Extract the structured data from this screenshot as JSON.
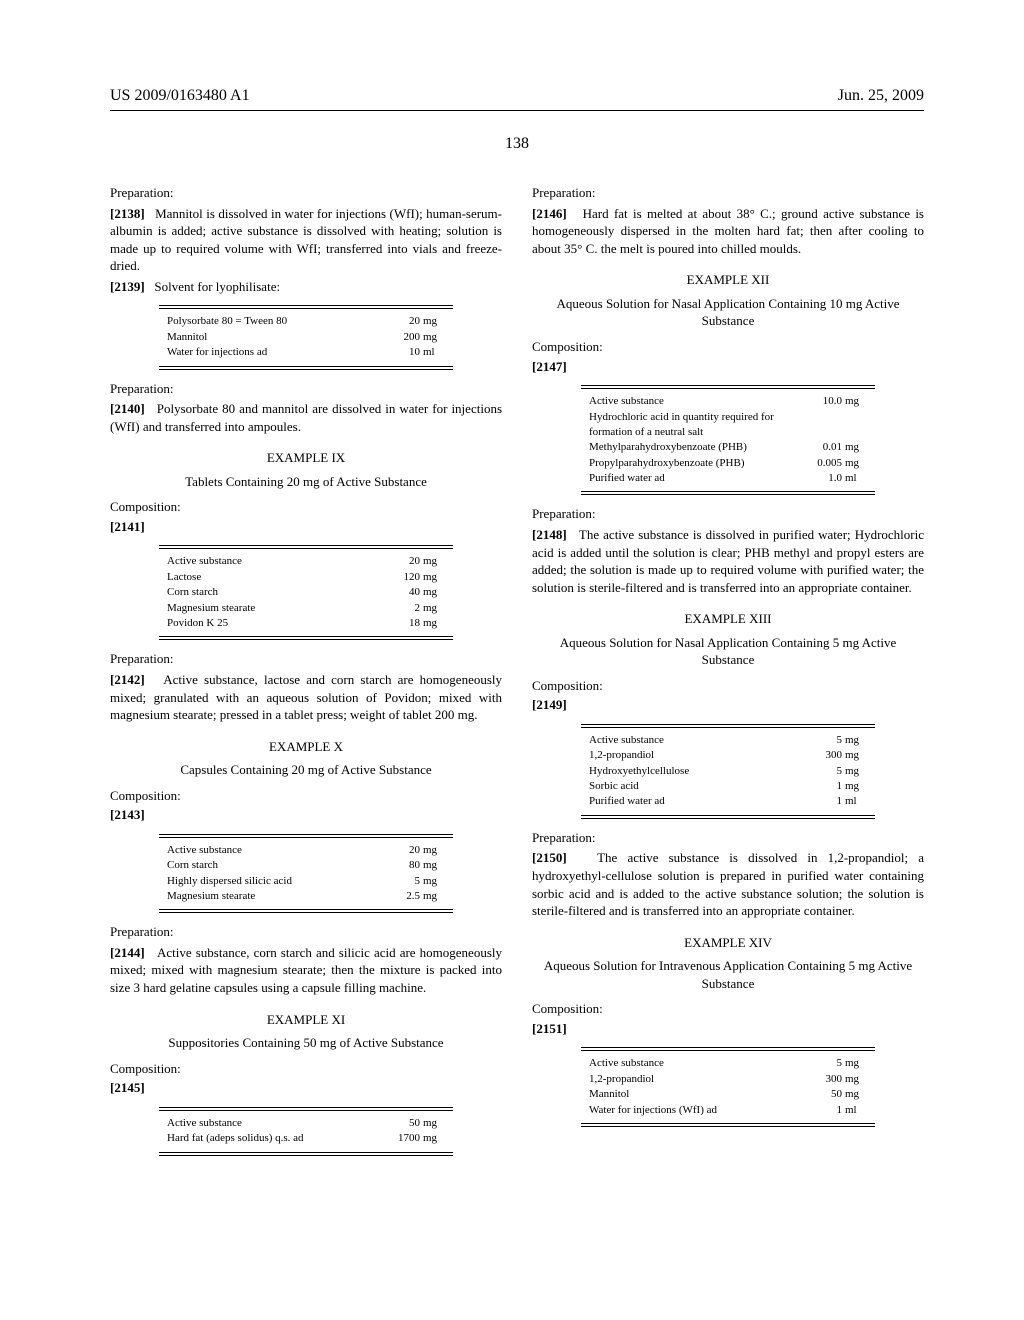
{
  "header": {
    "left": "US 2009/0163480 A1",
    "right": "Jun. 25, 2009"
  },
  "pageNumber": "138",
  "left": {
    "prep1": "Preparation:",
    "p2138": {
      "num": "[2138]",
      "text": "Mannitol is dissolved in water for injections (WfI); human-serum-albumin is added; active substance is dissolved with heating; solution is made up to required volume with WfI; transferred into vials and freeze-dried."
    },
    "p2139": {
      "num": "[2139]",
      "text": "Solvent for lyophilisate:"
    },
    "table1": [
      {
        "n": "Polysorbate 80 = Tween 80",
        "v": "20",
        "u": "mg"
      },
      {
        "n": "Mannitol",
        "v": "200",
        "u": "mg"
      },
      {
        "n": "Water for injections ad",
        "v": "10",
        "u": "ml"
      }
    ],
    "prep2": "Preparation:",
    "p2140": {
      "num": "[2140]",
      "text": "Polysorbate 80 and mannitol are dissolved in water for injections (WfI) and transferred into ampoules."
    },
    "ex9h": "EXAMPLE IX",
    "ex9t": "Tablets Containing 20 mg of Active Substance",
    "comp1": "Composition:",
    "p2141": "[2141]",
    "table2": [
      {
        "n": "Active substance",
        "v": "20",
        "u": "mg"
      },
      {
        "n": "Lactose",
        "v": "120",
        "u": "mg"
      },
      {
        "n": "Corn starch",
        "v": "40",
        "u": "mg"
      },
      {
        "n": "Magnesium stearate",
        "v": "2",
        "u": "mg"
      },
      {
        "n": "Povidon K 25",
        "v": "18",
        "u": "mg"
      }
    ],
    "prep3": "Preparation:",
    "p2142": {
      "num": "[2142]",
      "text": "Active substance, lactose and corn starch are homogeneously mixed; granulated with an aqueous solution of Povidon; mixed with magnesium stearate; pressed in a tablet press; weight of tablet 200 mg."
    },
    "ex10h": "EXAMPLE X",
    "ex10t": "Capsules Containing 20 mg of Active Substance",
    "comp2": "Composition:",
    "p2143": "[2143]",
    "table3": [
      {
        "n": "Active substance",
        "v": "20",
        "u": "mg"
      },
      {
        "n": "Corn starch",
        "v": "80",
        "u": "mg"
      },
      {
        "n": "Highly dispersed silicic acid",
        "v": "5",
        "u": "mg"
      },
      {
        "n": "Magnesium stearate",
        "v": "2.5",
        "u": "mg"
      }
    ],
    "prep4": "Preparation:",
    "p2144": {
      "num": "[2144]",
      "text": "Active substance, corn starch and silicic acid are homogeneously mixed; mixed with magnesium stearate; then the mixture is packed into size 3 hard gelatine capsules using a capsule filling machine."
    },
    "ex11h": "EXAMPLE XI",
    "ex11t": "Suppositories Containing 50 mg of Active Substance",
    "comp3": "Composition:",
    "p2145": "[2145]",
    "table4": [
      {
        "n": "Active substance",
        "v": "50",
        "u": "mg"
      },
      {
        "n": "Hard fat (adeps solidus) q.s. ad",
        "v": "1700",
        "u": "mg"
      }
    ]
  },
  "right": {
    "prep1": "Preparation:",
    "p2146": {
      "num": "[2146]",
      "text": "Hard fat is melted at about 38° C.; ground active substance is homogeneously dispersed in the molten hard fat; then after cooling to about 35° C. the melt is poured into chilled moulds."
    },
    "ex12h": "EXAMPLE XII",
    "ex12t": "Aqueous Solution for Nasal Application Containing 10 mg Active Substance",
    "comp1": "Composition:",
    "p2147": "[2147]",
    "table1": [
      {
        "n": "Active substance",
        "v": "10.0",
        "u": "mg"
      },
      {
        "n": "Hydrochloric acid in quantity required for formation of a neutral salt",
        "v": "",
        "u": ""
      },
      {
        "n": "Methylparahydroxybenzoate (PHB)",
        "v": "0.01",
        "u": "mg"
      },
      {
        "n": "Propylparahydroxybenzoate (PHB)",
        "v": "0.005",
        "u": "mg"
      },
      {
        "n": "Purified water ad",
        "v": "1.0",
        "u": "ml"
      }
    ],
    "prep2": "Preparation:",
    "p2148": {
      "num": "[2148]",
      "text": "The active substance is dissolved in purified water; Hydrochloric acid is added until the solution is clear; PHB methyl and propyl esters are added; the solution is made up to required volume with purified water; the solution is sterile-filtered and is transferred into an appropriate container."
    },
    "ex13h": "EXAMPLE XIII",
    "ex13t": "Aqueous Solution for Nasal Application Containing 5 mg Active Substance",
    "comp2": "Composition:",
    "p2149": "[2149]",
    "table2": [
      {
        "n": "Active substance",
        "v": "5",
        "u": "mg"
      },
      {
        "n": "1,2-propandiol",
        "v": "300",
        "u": "mg"
      },
      {
        "n": "Hydroxyethylcellulose",
        "v": "5",
        "u": "mg"
      },
      {
        "n": "Sorbic acid",
        "v": "1",
        "u": "mg"
      },
      {
        "n": "Purified water ad",
        "v": "1",
        "u": "ml"
      }
    ],
    "prep3": "Preparation:",
    "p2150": {
      "num": "[2150]",
      "text": "The active substance is dissolved in 1,2-propandiol; a hydroxyethyl-cellulose solution is prepared in purified water containing sorbic acid and is added to the active substance solution; the solution is sterile-filtered and is transferred into an appropriate container."
    },
    "ex14h": "EXAMPLE XIV",
    "ex14t": "Aqueous Solution for Intravenous Application Containing 5 mg Active Substance",
    "comp3": "Composition:",
    "p2151": "[2151]",
    "table3": [
      {
        "n": "Active substance",
        "v": "5",
        "u": "mg"
      },
      {
        "n": "1,2-propandiol",
        "v": "300",
        "u": "mg"
      },
      {
        "n": "Mannitol",
        "v": "50",
        "u": "mg"
      },
      {
        "n": "Water for injections (WfI) ad",
        "v": "1",
        "u": "ml"
      }
    ]
  }
}
